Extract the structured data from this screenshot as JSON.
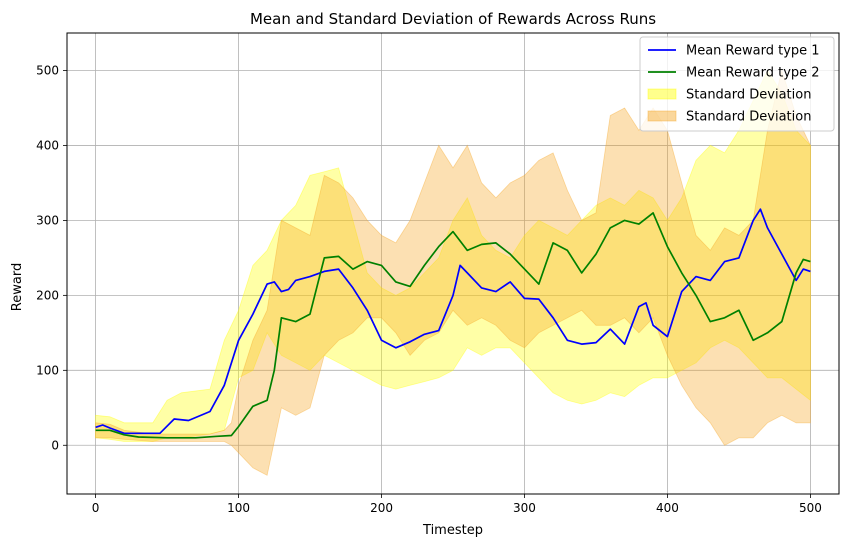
{
  "chart_data": {
    "type": "line",
    "title": "Mean and Standard Deviation of Rewards Across Runs",
    "xlabel": "Timestep",
    "ylabel": "Reward",
    "xlim": [
      -20,
      520
    ],
    "ylim": [
      -65,
      550
    ],
    "xticks": [
      0,
      100,
      200,
      300,
      400,
      500
    ],
    "yticks": [
      0,
      100,
      200,
      300,
      400,
      500
    ],
    "grid": true,
    "legend_position": "top-right",
    "series": [
      {
        "name": "Mean Reward type 1",
        "color": "#0000ff",
        "x": [
          0,
          5,
          10,
          20,
          30,
          45,
          55,
          65,
          80,
          90,
          100,
          110,
          120,
          125,
          130,
          135,
          140,
          150,
          160,
          170,
          180,
          190,
          200,
          210,
          220,
          230,
          240,
          250,
          255,
          260,
          270,
          280,
          290,
          300,
          310,
          320,
          330,
          340,
          350,
          360,
          370,
          380,
          385,
          390,
          400,
          410,
          420,
          430,
          440,
          450,
          455,
          460,
          465,
          470,
          480,
          490,
          495,
          500
        ],
        "y": [
          24,
          27,
          23,
          16,
          16,
          16,
          35,
          33,
          45,
          80,
          140,
          175,
          215,
          218,
          205,
          208,
          220,
          225,
          232,
          235,
          210,
          180,
          140,
          130,
          138,
          148,
          153,
          200,
          240,
          230,
          210,
          205,
          218,
          196,
          195,
          170,
          140,
          135,
          137,
          155,
          135,
          185,
          190,
          160,
          145,
          205,
          225,
          220,
          245,
          250,
          275,
          300,
          315,
          290,
          255,
          220,
          235,
          232
        ]
      },
      {
        "name": "Mean Reward type 2",
        "color": "#008000",
        "x": [
          0,
          10,
          20,
          30,
          50,
          70,
          85,
          95,
          100,
          110,
          120,
          125,
          130,
          140,
          150,
          160,
          170,
          180,
          190,
          200,
          210,
          220,
          230,
          240,
          250,
          260,
          270,
          280,
          290,
          300,
          310,
          320,
          330,
          340,
          350,
          360,
          370,
          380,
          390,
          400,
          410,
          420,
          430,
          440,
          450,
          460,
          470,
          480,
          490,
          495,
          500
        ],
        "y": [
          20,
          20,
          14,
          11,
          10,
          10,
          12,
          13,
          25,
          52,
          60,
          100,
          170,
          165,
          175,
          250,
          252,
          235,
          245,
          240,
          218,
          212,
          240,
          265,
          285,
          260,
          268,
          270,
          255,
          235,
          215,
          270,
          260,
          230,
          255,
          290,
          300,
          295,
          310,
          265,
          230,
          200,
          165,
          170,
          180,
          140,
          150,
          165,
          230,
          248,
          245
        ]
      }
    ],
    "bands": [
      {
        "name": "Standard Deviation",
        "color": "#ffff00",
        "opacity": 0.35,
        "x": [
          0,
          10,
          20,
          40,
          50,
          60,
          80,
          90,
          100,
          110,
          120,
          130,
          140,
          150,
          160,
          170,
          180,
          190,
          200,
          210,
          220,
          230,
          240,
          250,
          260,
          270,
          280,
          290,
          300,
          310,
          320,
          330,
          340,
          350,
          360,
          370,
          380,
          390,
          400,
          410,
          420,
          430,
          440,
          450,
          460,
          470,
          480,
          490,
          500
        ],
        "upper": [
          40,
          38,
          30,
          30,
          60,
          70,
          75,
          140,
          180,
          240,
          260,
          300,
          320,
          360,
          365,
          370,
          300,
          230,
          210,
          200,
          210,
          230,
          250,
          300,
          330,
          280,
          260,
          250,
          280,
          300,
          290,
          280,
          300,
          320,
          330,
          320,
          340,
          330,
          300,
          330,
          380,
          400,
          390,
          420,
          460,
          500,
          470,
          420,
          400
        ],
        "lower": [
          10,
          8,
          5,
          5,
          10,
          10,
          15,
          20,
          90,
          100,
          150,
          120,
          110,
          100,
          120,
          110,
          100,
          90,
          80,
          75,
          80,
          85,
          90,
          100,
          130,
          120,
          130,
          130,
          110,
          90,
          70,
          60,
          55,
          60,
          70,
          65,
          80,
          90,
          90,
          100,
          110,
          130,
          140,
          130,
          110,
          90,
          90,
          75,
          60
        ]
      },
      {
        "name": "Standard Deviation",
        "color": "#f5a623",
        "opacity": 0.35,
        "x": [
          0,
          10,
          20,
          40,
          60,
          80,
          90,
          95,
          100,
          110,
          120,
          130,
          140,
          150,
          160,
          170,
          180,
          190,
          200,
          210,
          220,
          230,
          240,
          250,
          260,
          270,
          280,
          290,
          300,
          310,
          320,
          330,
          340,
          350,
          360,
          370,
          380,
          390,
          400,
          410,
          420,
          430,
          440,
          450,
          460,
          470,
          480,
          490,
          500
        ],
        "upper": [
          30,
          28,
          20,
          15,
          15,
          15,
          20,
          30,
          80,
          140,
          180,
          300,
          290,
          280,
          360,
          350,
          330,
          300,
          280,
          270,
          300,
          350,
          400,
          370,
          400,
          350,
          330,
          350,
          360,
          380,
          390,
          340,
          300,
          310,
          440,
          450,
          420,
          450,
          420,
          350,
          280,
          260,
          290,
          280,
          300,
          420,
          500,
          440,
          400
        ],
        "lower": [
          10,
          10,
          8,
          5,
          5,
          5,
          5,
          0,
          -10,
          -30,
          -40,
          50,
          40,
          50,
          120,
          140,
          150,
          170,
          170,
          150,
          120,
          140,
          150,
          180,
          160,
          170,
          160,
          140,
          130,
          150,
          160,
          170,
          180,
          160,
          160,
          170,
          150,
          170,
          120,
          80,
          50,
          30,
          0,
          10,
          10,
          30,
          40,
          30,
          30
        ]
      }
    ]
  }
}
